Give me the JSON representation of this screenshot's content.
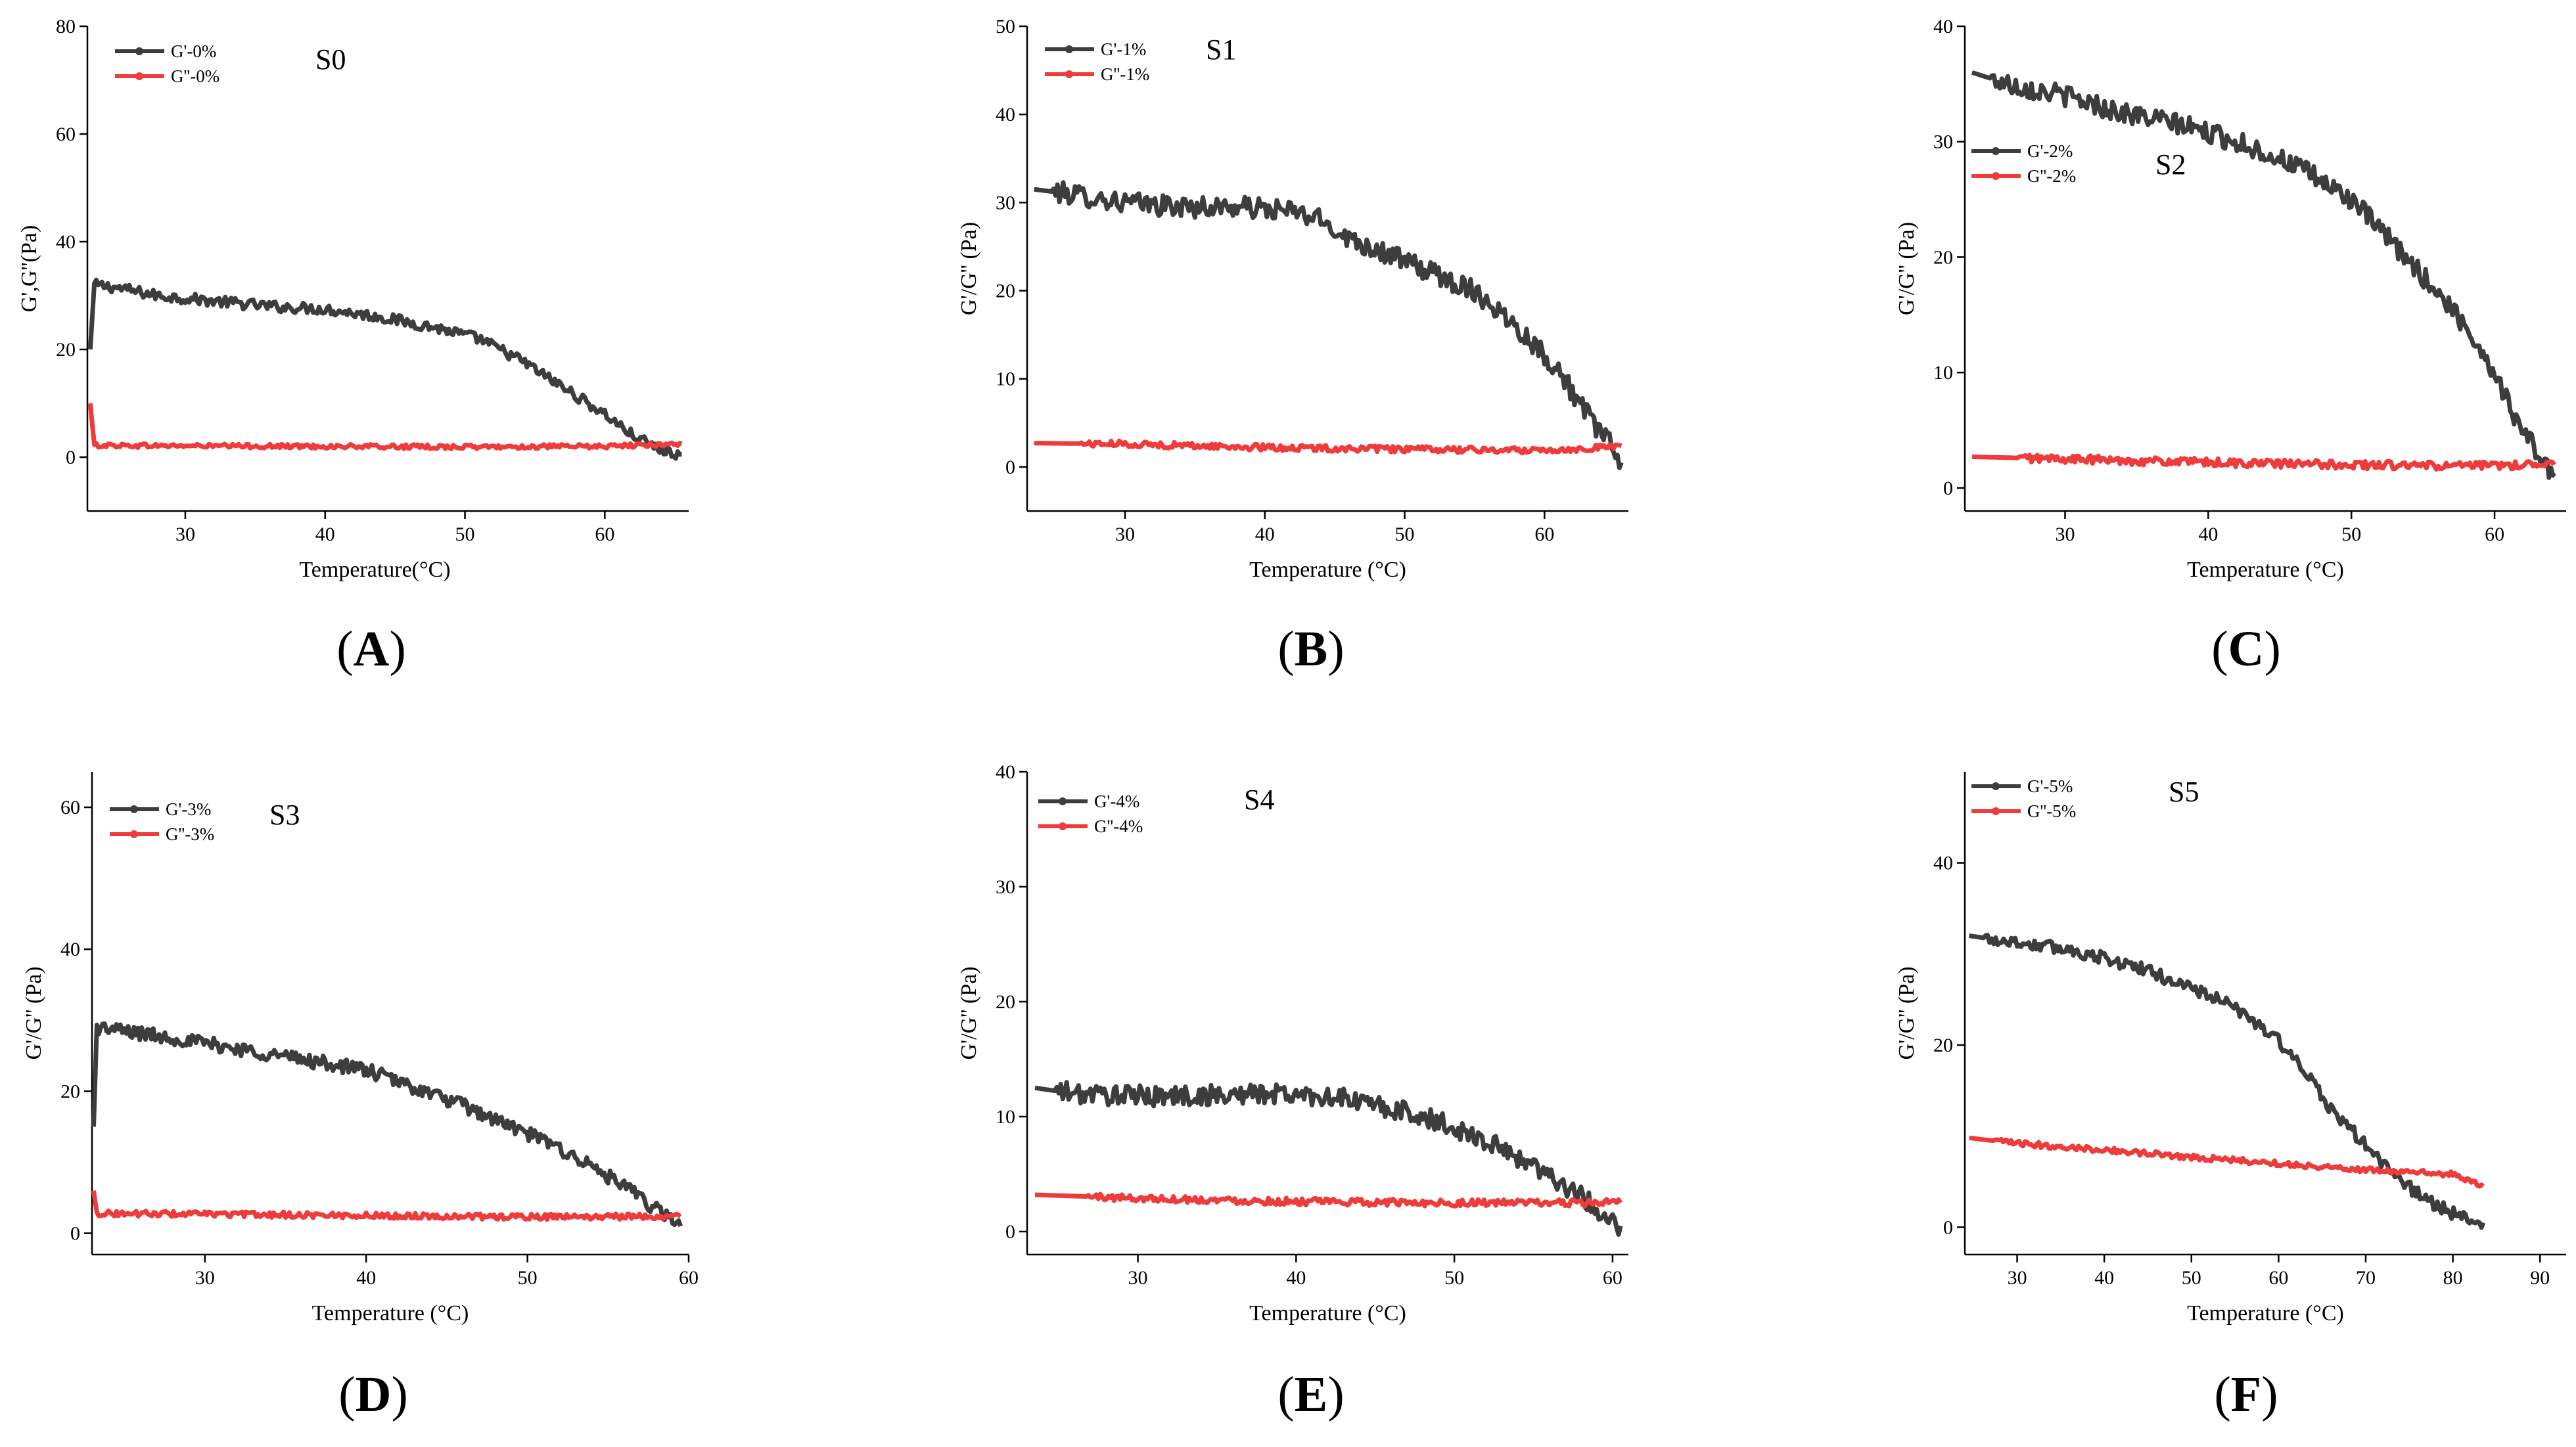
{
  "colors": {
    "g_prime": "#3d3d3d",
    "g_double_prime": "#ee3b3b",
    "axis": "#000000"
  },
  "chart_data": [
    {
      "id": "A",
      "type": "line",
      "panel_label": "A",
      "annotation": "S0",
      "xlabel": "Temperature(°C)",
      "ylabel": "G',G''(Pa)",
      "xlim": [
        23,
        66
      ],
      "ylim": [
        -10,
        80
      ],
      "xticks": [
        30,
        40,
        50,
        60
      ],
      "yticks": [
        0,
        20,
        40,
        60,
        80
      ],
      "series": [
        {
          "name": "G'-0%",
          "kind": "g_prime",
          "x": [
            23.2,
            23.5,
            25,
            28,
            32,
            36,
            40,
            44,
            48,
            51,
            54,
            57,
            60,
            62,
            63.5,
            64.5,
            65.5
          ],
          "y": [
            20,
            32,
            31.5,
            30,
            29,
            28,
            27.5,
            26,
            24,
            22,
            18,
            13,
            8,
            4,
            2,
            1,
            0.5
          ],
          "noise": 1.0
        },
        {
          "name": "G''-0%",
          "kind": "g_double_prime",
          "x": [
            23.2,
            23.5,
            30,
            40,
            50,
            60,
            65.5
          ],
          "y": [
            10,
            2.2,
            2.1,
            2.0,
            1.9,
            2.0,
            2.5
          ],
          "noise": 0.4
        }
      ]
    },
    {
      "id": "B",
      "type": "line",
      "panel_label": "B",
      "annotation": "S1",
      "xlabel": "Temperature (°C)",
      "ylabel": "G'/G'' (Pa)",
      "xlim": [
        23,
        66
      ],
      "ylim": [
        -5,
        50
      ],
      "xticks": [
        30,
        40,
        50,
        60
      ],
      "yticks": [
        0,
        10,
        20,
        30,
        40,
        50
      ],
      "series": [
        {
          "name": "G'-1%",
          "kind": "g_prime",
          "x": [
            23.5,
            26,
            30,
            34,
            38,
            42,
            44,
            46,
            49,
            52,
            55,
            58,
            61,
            63,
            64.5,
            65.5
          ],
          "y": [
            31.5,
            31,
            30,
            29.5,
            29.5,
            29,
            28,
            26,
            24,
            22,
            20,
            16,
            11,
            6,
            3,
            0.5
          ],
          "noise": 1.2
        },
        {
          "name": "G''-1%",
          "kind": "g_double_prime",
          "x": [
            23.5,
            30,
            40,
            50,
            58,
            62,
            65.5
          ],
          "y": [
            2.7,
            2.6,
            2.2,
            2.0,
            1.9,
            2.0,
            2.4
          ],
          "noise": 0.35
        }
      ]
    },
    {
      "id": "C",
      "type": "line",
      "panel_label": "C",
      "annotation": "S2",
      "xlabel": "Temperature (°C)",
      "ylabel": "G'/G'' (Pa)",
      "xlim": [
        23,
        65
      ],
      "ylim": [
        -2,
        40
      ],
      "xticks": [
        30,
        40,
        50,
        60
      ],
      "yticks": [
        0,
        10,
        20,
        30,
        40
      ],
      "series": [
        {
          "name": "G'-2%",
          "kind": "g_prime",
          "x": [
            23.5,
            26,
            30,
            34,
            38,
            42,
            46,
            50,
            53,
            56,
            58,
            60,
            61.5,
            63,
            64.2
          ],
          "y": [
            36,
            35,
            34,
            32.5,
            31.5,
            30,
            28,
            25,
            21,
            17,
            14,
            10,
            6,
            3,
            1
          ],
          "noise": 0.9
        },
        {
          "name": "G''-2%",
          "kind": "g_double_prime",
          "x": [
            23.5,
            30,
            40,
            50,
            58,
            62,
            64.2
          ],
          "y": [
            2.7,
            2.5,
            2.2,
            2.0,
            1.9,
            2.0,
            2.3
          ],
          "noise": 0.35
        }
      ]
    },
    {
      "id": "D",
      "type": "line",
      "panel_label": "D",
      "annotation": "S3",
      "xlabel": "Temperature (°C)",
      "ylabel": "G'/G'' (Pa)",
      "xlim": [
        23,
        60
      ],
      "ylim": [
        -3,
        65
      ],
      "xticks": [
        30,
        40,
        50,
        60
      ],
      "yticks": [
        0,
        20,
        40,
        60
      ],
      "series": [
        {
          "name": "G'-3%",
          "kind": "g_prime",
          "x": [
            23.1,
            23.3,
            25,
            28,
            32,
            36,
            40,
            43,
            46,
            49,
            52,
            55,
            57,
            58.5,
            59.5
          ],
          "y": [
            15,
            29,
            28.5,
            27.5,
            26,
            24.5,
            23,
            20.5,
            18,
            15,
            12,
            8,
            5,
            2.5,
            1
          ],
          "noise": 1.0
        },
        {
          "name": "G''-3%",
          "kind": "g_double_prime",
          "x": [
            23.1,
            23.3,
            30,
            40,
            50,
            59.5
          ],
          "y": [
            6,
            2.8,
            2.7,
            2.5,
            2.3,
            2.4
          ],
          "noise": 0.4
        }
      ]
    },
    {
      "id": "E",
      "type": "line",
      "panel_label": "E",
      "annotation": "S4",
      "xlabel": "Temperature (°C)",
      "ylabel": "G'/G'' (Pa)",
      "xlim": [
        23,
        61
      ],
      "ylim": [
        -2,
        40
      ],
      "xticks": [
        30,
        40,
        50,
        60
      ],
      "yticks": [
        0,
        10,
        20,
        30,
        40
      ],
      "series": [
        {
          "name": "G'-4%",
          "kind": "g_prime",
          "x": [
            23.5,
            26,
            30,
            34,
            38,
            42,
            45,
            48,
            51,
            54,
            56,
            58,
            59.5,
            60.5
          ],
          "y": [
            12.5,
            12,
            11.8,
            11.8,
            12,
            11.8,
            11,
            10,
            8.5,
            6.5,
            5,
            3,
            1.5,
            0.5
          ],
          "noise": 0.9
        },
        {
          "name": "G''-4%",
          "kind": "g_double_prime",
          "x": [
            23.5,
            30,
            40,
            50,
            60.5
          ],
          "y": [
            3.2,
            2.9,
            2.6,
            2.5,
            2.5
          ],
          "noise": 0.3
        }
      ]
    },
    {
      "id": "F",
      "type": "line",
      "panel_label": "F",
      "annotation": "S5",
      "xlabel": "Temperature (°C)",
      "ylabel": "G'/G'' (Pa)",
      "xlim": [
        24,
        93
      ],
      "ylim": [
        -3,
        50
      ],
      "xticks": [
        30,
        40,
        50,
        60,
        70,
        80,
        90
      ],
      "yticks": [
        0,
        20,
        40
      ],
      "series": [
        {
          "name": "G'-5%",
          "kind": "g_prime",
          "x": [
            24.5,
            28,
            32,
            36,
            40,
            44,
            48,
            52,
            56,
            60,
            63,
            66,
            70,
            74,
            78,
            81,
            83.5
          ],
          "y": [
            32,
            31.5,
            31,
            30.5,
            29.5,
            28.5,
            27,
            25.5,
            23.5,
            20.5,
            17,
            13,
            9,
            5,
            2.5,
            1,
            0.5
          ],
          "noise": 0.7
        },
        {
          "name": "G''-5%",
          "kind": "g_double_prime",
          "x": [
            24.5,
            30,
            40,
            50,
            60,
            70,
            80,
            83.5
          ],
          "y": [
            9.8,
            9.2,
            8.5,
            7.7,
            7.0,
            6.3,
            5.8,
            4.5
          ],
          "noise": 0.3
        }
      ]
    }
  ]
}
